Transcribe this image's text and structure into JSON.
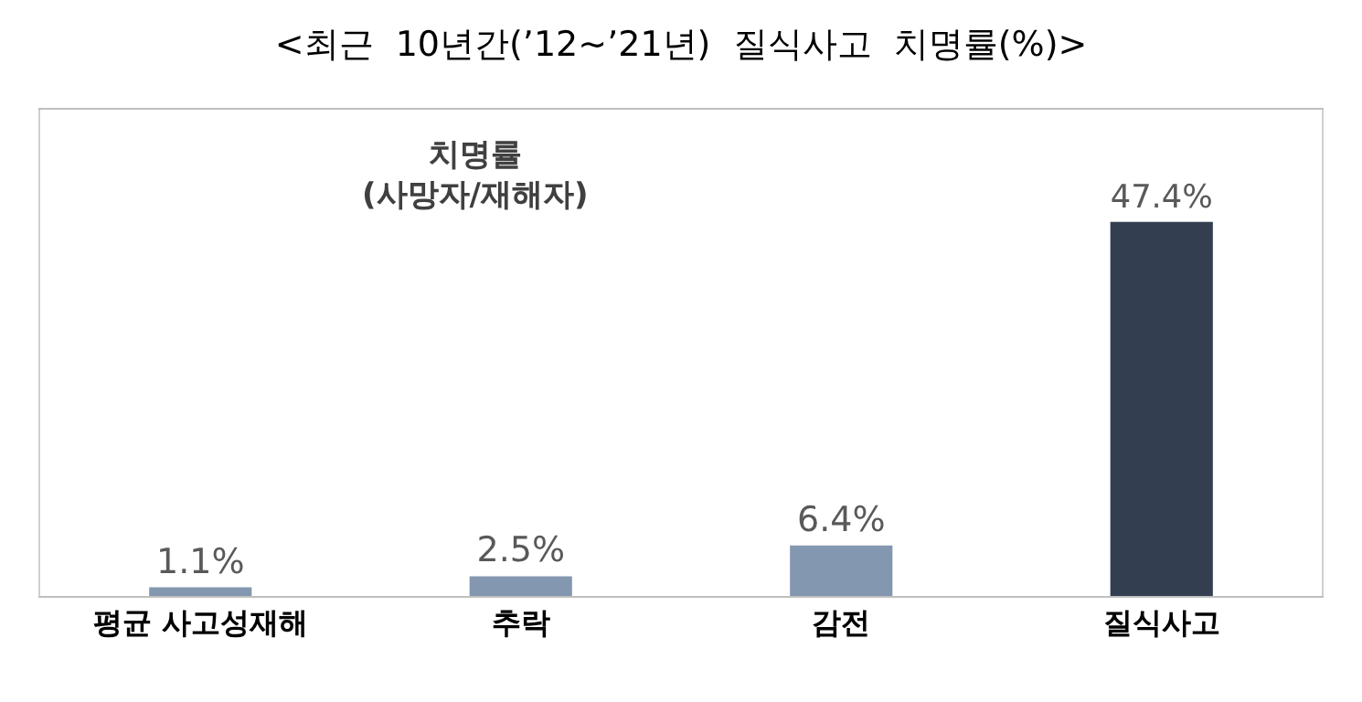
{
  "chart_data": {
    "type": "bar",
    "title": "<최근  10년간(’12~’21년)  질식사고  치명률(%)>",
    "categories": [
      "평균 사고성재해",
      "추락",
      "감전",
      "질식사고"
    ],
    "values": [
      1.1,
      2.5,
      6.4,
      47.4
    ],
    "value_labels": [
      "1.1%",
      "2.5%",
      "6.4%",
      "47.4%"
    ],
    "colors": [
      "#8497b0",
      "#8497b0",
      "#8497b0",
      "#333f50"
    ],
    "annotations": [
      "치명률\n(사망자/재해자)"
    ]
  }
}
